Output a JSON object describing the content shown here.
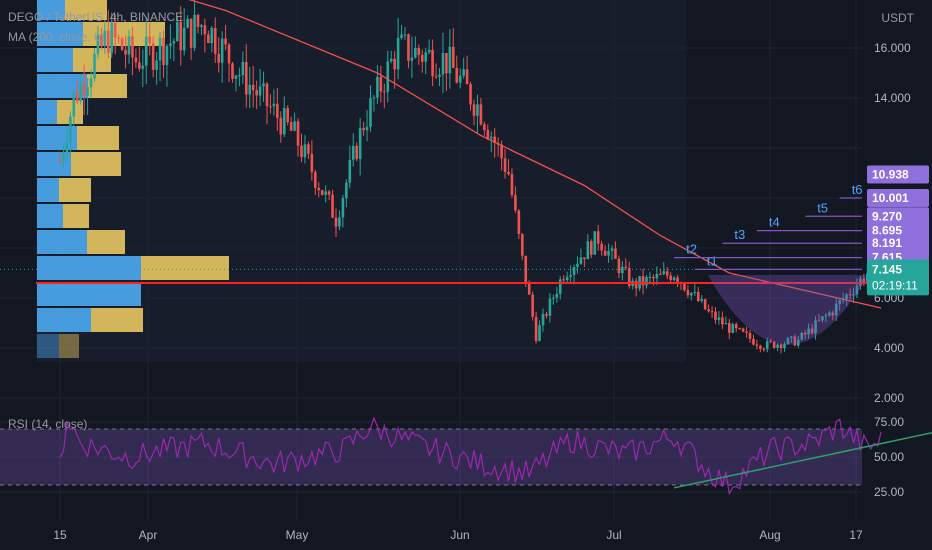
{
  "header": {
    "title": "DEGO / TetherUS, 4h, BINANCE",
    "ma_label": "MA (200, close, 0)"
  },
  "price_axis": {
    "currency": "USDT",
    "ticks": [
      "16.000",
      "14.000",
      "10.000",
      "8.000",
      "6.000",
      "4.000",
      "2.000"
    ]
  },
  "target_labels": [
    {
      "label": "10.938",
      "value": 10.938
    },
    {
      "label": "10.001",
      "value": 10.001
    },
    {
      "label": "9.270",
      "value": 9.27
    },
    {
      "label": "8.695",
      "value": 8.695
    },
    {
      "label": "8.191",
      "value": 8.191
    },
    {
      "label": "7.615",
      "value": 7.615
    }
  ],
  "target_lines": [
    "t1",
    "t2",
    "t3",
    "t4",
    "t5",
    "t6"
  ],
  "current": {
    "price": "7.145",
    "countdown": "02:19:11",
    "color": "#26a69a"
  },
  "time_axis": [
    "15",
    "Apr",
    "May",
    "Jun",
    "Jul",
    "Aug",
    "17"
  ],
  "rsi": {
    "label": "RSI (14, close)",
    "ticks": [
      "75.00",
      "50.00",
      "25.00"
    ],
    "upper": 70,
    "lower": 30
  },
  "colors": {
    "background": "#131722",
    "up": "#26a69a",
    "down": "#ef5350",
    "ma": "#f0524a",
    "support": "#ff2222",
    "target_line": "#7e57c2",
    "target_box": "#8f6fdb",
    "target_text": "#4ea4ff",
    "rsi_line": "#9c27b0",
    "volume_up": "#4aa3e8",
    "volume_down": "#e8c660",
    "trendline": "#2e9e6a"
  },
  "chart_data": {
    "type": "candlestick",
    "title": "DEGO / TetherUS, 4h, BINANCE",
    "x_ticks": [
      "15",
      "Apr",
      "May",
      "Jun",
      "Jul",
      "Aug",
      "17"
    ],
    "ylim": [
      2,
      16.5
    ],
    "price_anchors": [
      {
        "date": "Mar 15",
        "price": 11.5
      },
      {
        "date": "Mar 17",
        "price": 14.0
      },
      {
        "date": "Mar 22",
        "price": 16.5
      },
      {
        "date": "Mar 26",
        "price": 15.5
      },
      {
        "date": "Apr 5",
        "price": 17.0
      },
      {
        "date": "Apr 10",
        "price": 15.0
      },
      {
        "date": "Apr 18",
        "price": 12.5
      },
      {
        "date": "Apr 24",
        "price": 9.2
      },
      {
        "date": "Apr 28",
        "price": 13.0
      },
      {
        "date": "May 3",
        "price": 16.0
      },
      {
        "date": "May 10",
        "price": 15.5
      },
      {
        "date": "May 15",
        "price": 13.5
      },
      {
        "date": "May 19",
        "price": 11.0
      },
      {
        "date": "May 21",
        "price": 7.5
      },
      {
        "date": "May 23",
        "price": 4.5
      },
      {
        "date": "May 27",
        "price": 7.0
      },
      {
        "date": "Jun 1",
        "price": 8.4
      },
      {
        "date": "Jun 6",
        "price": 6.5
      },
      {
        "date": "Jun 12",
        "price": 7.0
      },
      {
        "date": "Jun 17",
        "price": 5.4
      },
      {
        "date": "Jun 20",
        "price": 4.8
      },
      {
        "date": "Jun 25",
        "price": 4.1
      },
      {
        "date": "Jun 30",
        "price": 4.3
      },
      {
        "date": "Jul 5",
        "price": 5.5
      },
      {
        "date": "Jul 10",
        "price": 7.0
      },
      {
        "date": "Jul 12",
        "price": 7.145
      }
    ],
    "ma200": [
      {
        "date": "Mar 15",
        "price": 19.5
      },
      {
        "date": "Apr 8",
        "price": 17.5
      },
      {
        "date": "Apr 30",
        "price": 15.0
      },
      {
        "date": "May 15",
        "price": 12.5
      },
      {
        "date": "May 30",
        "price": 10.5
      },
      {
        "date": "Jun 10",
        "price": 8.5
      },
      {
        "date": "Jun 20",
        "price": 7.0
      },
      {
        "date": "Jul 1",
        "price": 6.3
      },
      {
        "date": "Jul 12",
        "price": 5.6
      }
    ],
    "support_price": 6.6,
    "volume_profile": [
      {
        "up": 28,
        "down": 42
      },
      {
        "up": 46,
        "down": 82
      },
      {
        "up": 36,
        "down": 38
      },
      {
        "up": 50,
        "down": 40
      },
      {
        "up": 20,
        "down": 26
      },
      {
        "up": 40,
        "down": 42
      },
      {
        "up": 34,
        "down": 50
      },
      {
        "up": 22,
        "down": 32
      },
      {
        "up": 26,
        "down": 26
      },
      {
        "up": 50,
        "down": 38
      },
      {
        "up": 104,
        "down": 88
      },
      {
        "up": 104,
        "down": 0
      },
      {
        "up": 54,
        "down": 52
      },
      {
        "up": 22,
        "down": 20
      }
    ],
    "rsi_anchors": [
      {
        "date": "Mar 15",
        "value": 45
      },
      {
        "date": "Mar 16",
        "value": 78
      },
      {
        "date": "Mar 18",
        "value": 60
      },
      {
        "date": "Mar 25",
        "value": 50
      },
      {
        "date": "Apr 5",
        "value": 60
      },
      {
        "date": "Apr 15",
        "value": 45
      },
      {
        "date": "Apr 25",
        "value": 55
      },
      {
        "date": "Apr 29",
        "value": 72
      },
      {
        "date": "May 5",
        "value": 60
      },
      {
        "date": "May 15",
        "value": 45
      },
      {
        "date": "May 22",
        "value": 38
      },
      {
        "date": "May 28",
        "value": 62
      },
      {
        "date": "Jun 5",
        "value": 52
      },
      {
        "date": "Jun 12",
        "value": 65
      },
      {
        "date": "Jun 17",
        "value": 40
      },
      {
        "date": "Jun 20",
        "value": 30
      },
      {
        "date": "Jun 26",
        "value": 55
      },
      {
        "date": "Jul 2",
        "value": 60
      },
      {
        "date": "Jul 6",
        "value": 72
      },
      {
        "date": "Jul 10",
        "value": 56
      },
      {
        "date": "Jul 12",
        "value": 62
      }
    ]
  }
}
